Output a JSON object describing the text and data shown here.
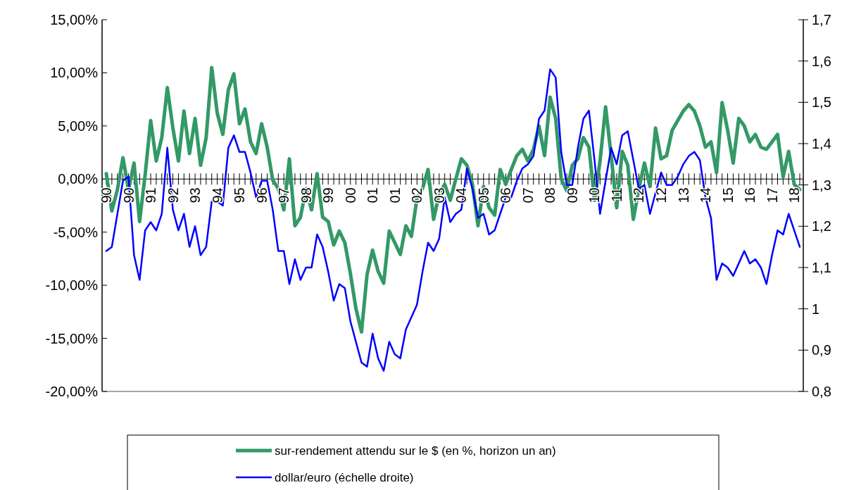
{
  "chart_data": {
    "type": "line",
    "categories": [
      "90",
      null,
      null,
      null,
      "90",
      null,
      null,
      null,
      "91",
      null,
      null,
      null,
      "92",
      null,
      null,
      null,
      "93",
      null,
      null,
      null,
      "94",
      null,
      null,
      null,
      "95",
      null,
      null,
      null,
      "96",
      null,
      null,
      null,
      "97",
      null,
      null,
      null,
      "98",
      null,
      null,
      null,
      "99",
      null,
      null,
      null,
      "00",
      null,
      null,
      null,
      "01",
      null,
      null,
      null,
      "01",
      null,
      null,
      null,
      "02",
      null,
      null,
      null,
      "03",
      null,
      null,
      null,
      "04",
      null,
      null,
      null,
      "05",
      null,
      null,
      null,
      "06",
      null,
      null,
      null,
      "07",
      null,
      null,
      null,
      "08",
      null,
      null,
      null,
      "09",
      null,
      null,
      null,
      "10",
      null,
      null,
      null,
      "11",
      null,
      null,
      null,
      "12",
      null,
      null,
      null,
      "12",
      null,
      null,
      null,
      "13",
      null,
      null,
      null,
      "14",
      null,
      null,
      null,
      "15",
      null,
      null,
      null,
      "16",
      null,
      null,
      null,
      "17",
      null,
      null,
      null,
      "18",
      null
    ],
    "series": [
      {
        "name": "sur-rendement attendu sur le $ (en %, horizon un an)",
        "color": "#339966",
        "values": [
          0.5,
          -3,
          -1,
          2,
          -1,
          1.5,
          -4,
          0.4,
          5.5,
          1.7,
          3.9,
          8.6,
          4.8,
          1.7,
          6.4,
          2.4,
          5.7,
          1.3,
          3.9,
          10.5,
          6.2,
          4.2,
          8.4,
          9.9,
          5.2,
          6.6,
          3.5,
          2.4,
          5.2,
          3,
          -0.1,
          -0.9,
          -2.9,
          1.9,
          -4.4,
          -3.6,
          -0.9,
          -2.9,
          0.5,
          -3.6,
          -4,
          -6.2,
          -4.9,
          -6,
          -8.9,
          -12.2,
          -14.4,
          -9,
          -6.7,
          -8.7,
          -9.8,
          -4.9,
          -6,
          -7.1,
          -4.4,
          -5.4,
          -1.8,
          -0.9,
          0.9,
          -3.8,
          -1.4,
          -0.5,
          -2,
          0,
          1.9,
          1.3,
          -0.5,
          -4.4,
          -0.7,
          -2.7,
          -3.4,
          0.9,
          -0.5,
          0.9,
          2.2,
          2.8,
          1.7,
          2.8,
          5,
          2.2,
          7.7,
          5.7,
          0,
          -1.1,
          1.3,
          1.9,
          3.9,
          3,
          -2,
          1.7,
          6.8,
          2.2,
          -2.7,
          2.6,
          1.3,
          -3.8,
          -0.9,
          1.5,
          -0.7,
          4.8,
          1.9,
          2.2,
          4.6,
          5.5,
          6.4,
          7,
          6.4,
          5,
          3,
          3.5,
          0.6,
          7.2,
          4.6,
          1.5,
          5.7,
          5,
          3.5,
          4.2,
          3,
          2.8,
          3.5,
          4.2,
          0.2,
          2.6,
          -0.5,
          -1
        ]
      },
      {
        "name": "dollar/euro (échelle droite)",
        "color": "#0000ff",
        "axis": "y2",
        "values": [
          1.14,
          1.15,
          1.23,
          1.31,
          1.32,
          1.13,
          1.07,
          1.19,
          1.21,
          1.19,
          1.23,
          1.39,
          1.24,
          1.19,
          1.23,
          1.15,
          1.2,
          1.13,
          1.15,
          1.26,
          1.26,
          1.25,
          1.39,
          1.42,
          1.38,
          1.38,
          1.33,
          1.27,
          1.31,
          1.31,
          1.24,
          1.14,
          1.14,
          1.06,
          1.12,
          1.07,
          1.1,
          1.1,
          1.18,
          1.15,
          1.09,
          1.02,
          1.06,
          1.05,
          0.97,
          0.92,
          0.87,
          0.86,
          0.94,
          0.88,
          0.85,
          0.92,
          0.89,
          0.88,
          0.95,
          0.98,
          1.01,
          1.09,
          1.16,
          1.14,
          1.17,
          1.27,
          1.21,
          1.23,
          1.24,
          1.34,
          1.29,
          1.22,
          1.23,
          1.18,
          1.19,
          1.23,
          1.27,
          1.27,
          1.31,
          1.34,
          1.35,
          1.37,
          1.46,
          1.48,
          1.58,
          1.56,
          1.38,
          1.3,
          1.3,
          1.39,
          1.46,
          1.48,
          1.36,
          1.23,
          1.31,
          1.39,
          1.35,
          1.42,
          1.43,
          1.36,
          1.29,
          1.3,
          1.23,
          1.28,
          1.33,
          1.3,
          1.3,
          1.32,
          1.35,
          1.37,
          1.38,
          1.36,
          1.27,
          1.22,
          1.07,
          1.11,
          1.1,
          1.08,
          1.11,
          1.14,
          1.11,
          1.12,
          1.1,
          1.06,
          1.13,
          1.19,
          1.18,
          1.23,
          1.19,
          1.15
        ]
      }
    ],
    "ylim": [
      -20,
      15
    ],
    "yticks": [
      {
        "value": -20,
        "label": "-20,00%"
      },
      {
        "value": -15,
        "label": "-15,00%"
      },
      {
        "value": -10,
        "label": "-10,00%"
      },
      {
        "value": -5,
        "label": "-5,00%"
      },
      {
        "value": 0,
        "label": "0,00%"
      },
      {
        "value": 5,
        "label": "5,00%"
      },
      {
        "value": 10,
        "label": "10,00%"
      },
      {
        "value": 15,
        "label": "15,00%"
      }
    ],
    "y2lim": [
      0.8,
      1.7
    ],
    "y2ticks": [
      {
        "value": 0.8,
        "label": "0,8"
      },
      {
        "value": 0.9,
        "label": "0,9"
      },
      1,
      {
        "value": 1.1,
        "label": "1,1"
      },
      {
        "value": 1.2,
        "label": "1,2"
      },
      {
        "value": 1.3,
        "label": "1,3"
      },
      {
        "value": 1.4,
        "label": "1,4"
      },
      {
        "value": 1.5,
        "label": "1,5"
      },
      {
        "value": 1.6,
        "label": "1,6"
      },
      {
        "value": 1.7,
        "label": "1,7"
      }
    ],
    "legend": "bottom",
    "grid": false,
    "marker": "none",
    "line_style": "solid"
  }
}
